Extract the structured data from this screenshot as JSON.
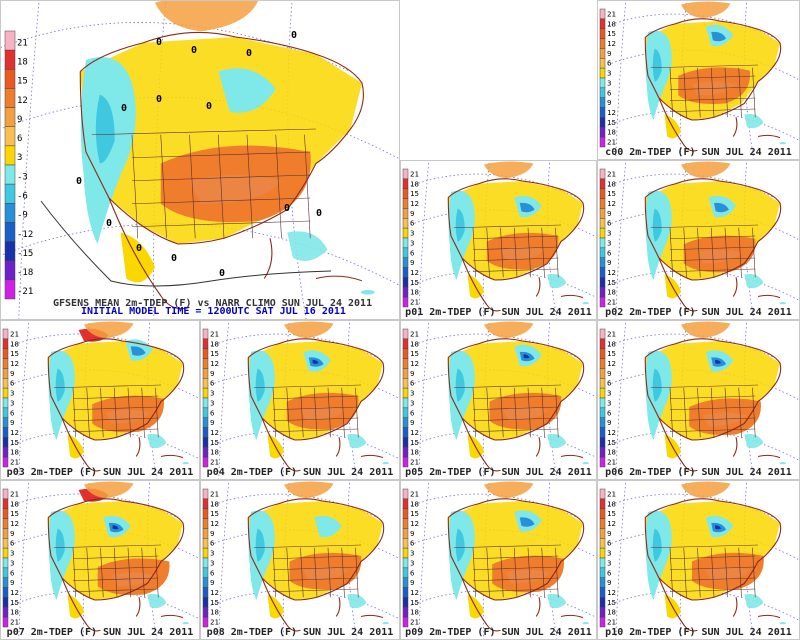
{
  "legend": {
    "levels": [
      "21",
      "18",
      "15",
      "12",
      "9",
      "6",
      "3",
      "-3",
      "-6",
      "-9",
      "-12",
      "-15",
      "-18",
      "-21"
    ],
    "small_levels": [
      "21",
      "18",
      "15",
      "12",
      "9",
      "6",
      "3",
      "3",
      "6",
      "9",
      "12",
      "15",
      "18",
      "21"
    ],
    "colors": [
      "#f9b2c4",
      "#e03030",
      "#e85a1e",
      "#f07d2c",
      "#f4a040",
      "#f8c050",
      "#fbd700",
      "#7fe8e8",
      "#40c8e0",
      "#2890d8",
      "#1860c8",
      "#1830a8",
      "#7020c8",
      "#d020e8"
    ]
  },
  "main": {
    "caption_line1": "GFSENS MEAN 2m-TDEP (F) vs NARR CLIMO SUN JUL 24 2011",
    "caption_line2": "INITIAL MODEL TIME = 1200UTC SAT JUL 16 2011",
    "contour_labels": [
      "0",
      "0",
      "0",
      "0",
      "0",
      "0",
      "0",
      "0",
      "0",
      "0",
      "0",
      "0",
      "0",
      "0"
    ]
  },
  "panels": [
    {
      "id": "c00",
      "caption": "c00 2m-TDEP (F) SUN JUL 24 2011"
    },
    {
      "id": "p01",
      "caption": "p01 2m-TDEP (F) SUN JUL 24 2011"
    },
    {
      "id": "p02",
      "caption": "p02 2m-TDEP (F) SUN JUL 24 2011"
    },
    {
      "id": "p03",
      "caption": "p03 2m-TDEP (F) SUN JUL 24 2011"
    },
    {
      "id": "p04",
      "caption": "p04 2m-TDEP (F) SUN JUL 24 2011"
    },
    {
      "id": "p05",
      "caption": "p05 2m-TDEP (F) SUN JUL 24 2011"
    },
    {
      "id": "p06",
      "caption": "p06 2m-TDEP (F) SUN JUL 24 2011"
    },
    {
      "id": "p07",
      "caption": "p07 2m-TDEP (F) SUN JUL 24 2011"
    },
    {
      "id": "p08",
      "caption": "p08 2m-TDEP (F) SUN JUL 24 2011"
    },
    {
      "id": "p09",
      "caption": "p09 2m-TDEP (F) SUN JUL 24 2011"
    },
    {
      "id": "p10",
      "caption": "p10 2m-TDEP (F) SUN JUL 24 2011"
    }
  ]
}
